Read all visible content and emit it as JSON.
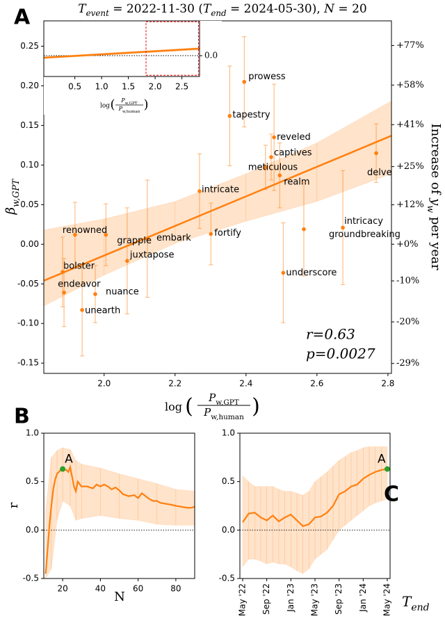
{
  "chart_data": [
    {
      "type": "scatter",
      "label": "A",
      "title_parts": [
        "T",
        "event",
        " = 2022-11-30 (",
        "T",
        "end",
        " = 2024-05-30), ",
        "N",
        " = 20"
      ],
      "x_label_parts": [
        "log",
        "(",
        "P",
        "w,GPT",
        "P",
        "w,human",
        ")"
      ],
      "y_label_parts": [
        "β",
        "w,GPT"
      ],
      "y2_label_parts": [
        "Increase of ",
        "y",
        "w",
        " per year"
      ],
      "color": "#ff7f0e",
      "points": {
        "labels": [
          "prowess",
          "tapestry",
          "reveled",
          "captives",
          "meticulous",
          "realm",
          "delve",
          "intricate",
          "intricacy",
          "groundbreaking",
          "fortify",
          "underscore",
          "embark",
          "grapple",
          "renowned",
          "juxtapose",
          "nuance",
          "unearth",
          "bolster",
          "endeavor"
        ],
        "x": [
          2.395,
          2.354,
          2.479,
          2.471,
          2.455,
          2.495,
          2.767,
          2.269,
          2.673,
          2.563,
          2.301,
          2.505,
          2.122,
          2.005,
          1.918,
          2.065,
          1.975,
          1.938,
          1.883,
          1.887
        ],
        "values": [
          0.205,
          0.162,
          0.135,
          0.11,
          0.097,
          0.087,
          0.115,
          0.067,
          0.021,
          0.019,
          0.013,
          -0.036,
          0.007,
          0.012,
          0.012,
          -0.021,
          -0.063,
          -0.083,
          -0.035,
          -0.061
        ],
        "errors": [
          0.057,
          0.063,
          0.067,
          0.029,
          0.028,
          0.041,
          0.037,
          0.047,
          0.072,
          0.059,
          0.039,
          0.063,
          0.074,
          0.039,
          0.041,
          0.067,
          0.036,
          0.058,
          0.044,
          0.043
        ]
      },
      "fit": {
        "x": [
          1.83,
          2.81
        ],
        "values": [
          -0.046,
          0.137
        ]
      },
      "band": {
        "x": [
          1.83,
          2.0,
          2.2,
          2.4,
          2.6,
          2.81
        ],
        "lower": [
          -0.078,
          -0.039,
          0.001,
          0.029,
          0.054,
          0.089
        ],
        "upper": [
          0.018,
          0.032,
          0.054,
          0.089,
          0.128,
          0.181
        ]
      },
      "annotations": [
        "r=0.63",
        "p=0.0027"
      ],
      "xlim": [
        1.83,
        2.81
      ],
      "xticks": [
        {
          "value": 2,
          "label": "2.0"
        },
        2.2,
        2.4,
        2.6,
        2.8
      ],
      "ylim": [
        -0.163,
        0.282
      ],
      "yticks": [
        -0.15,
        {
          "value": -0.1,
          "label": "-0.10"
        },
        -0.05,
        {
          "value": 0,
          "label": "0.00"
        },
        0.05,
        {
          "value": 0.1,
          "label": "0.10"
        },
        0.15,
        {
          "value": 0.2,
          "label": "0.20"
        },
        0.25
      ],
      "y2scale": "log",
      "y2lim": [
        -31,
        90
      ],
      "y2ticks": [
        {
          "value": -29,
          "label": "-29%"
        },
        {
          "value": -20,
          "label": "-20%"
        },
        {
          "value": -10,
          "label": "-10%"
        },
        {
          "value": 0,
          "label": "+0%"
        },
        {
          "value": 12,
          "label": "+12%"
        },
        {
          "value": 25,
          "label": "+25%"
        },
        {
          "value": 41,
          "label": "+41%"
        },
        {
          "value": 58,
          "label": "+58%"
        },
        {
          "value": 77,
          "label": "+77%"
        }
      ]
    },
    {
      "type": "line",
      "x_label_parts": [
        "log",
        "(",
        "P",
        "w,GPT",
        "P",
        "w,human",
        ")"
      ],
      "color": "#ff7f0e",
      "fit": {
        "x": [
          -0.08,
          2.83
        ],
        "values": [
          -0.017,
          0.058
        ]
      },
      "band": {
        "x": [
          -0.08,
          2.83
        ],
        "lower": [
          -0.025,
          0.048
        ],
        "upper": [
          -0.009,
          0.068
        ]
      },
      "zoom_box": {
        "x": [
          1.83,
          2.81
        ],
        "y": [
          -0.163,
          0.282
        ]
      },
      "xlim": [
        -0.08,
        2.83
      ],
      "xticks": [
        0.5,
        {
          "value": 1,
          "label": "1.0"
        },
        1.5,
        {
          "value": 2,
          "label": "2.0"
        },
        2.5
      ],
      "ylim": [
        -0.173,
        0.289
      ],
      "yticks": [
        {
          "value": 0,
          "label": "0.0"
        }
      ]
    },
    {
      "type": "line",
      "label": "B",
      "x_label": "N",
      "y_label": "r",
      "color": "#ff7f0e",
      "x": [
        11,
        12,
        13,
        14,
        15,
        16,
        17,
        18,
        19,
        20,
        22,
        23,
        24,
        25,
        26,
        27,
        28,
        30,
        33,
        36,
        38,
        40,
        42,
        44,
        46,
        48,
        50,
        52,
        55,
        58,
        60,
        62,
        64,
        66,
        68,
        70,
        72,
        75,
        78,
        80,
        83,
        86,
        88,
        90
      ],
      "values": [
        -0.45,
        -0.2,
        0.05,
        0.25,
        0.42,
        0.52,
        0.58,
        0.6,
        0.62,
        0.63,
        0.62,
        0.6,
        0.65,
        0.55,
        0.45,
        0.4,
        0.5,
        0.45,
        0.45,
        0.43,
        0.47,
        0.45,
        0.47,
        0.45,
        0.42,
        0.44,
        0.41,
        0.37,
        0.35,
        0.36,
        0.33,
        0.38,
        0.35,
        0.32,
        0.3,
        0.3,
        0.28,
        0.27,
        0.26,
        0.25,
        0.24,
        0.23,
        0.23,
        0.24
      ],
      "band": {
        "x": [
          11,
          14,
          17,
          20,
          24,
          27,
          30,
          40,
          50,
          60,
          70,
          80,
          90
        ],
        "lower": [
          -0.5,
          -0.4,
          0.1,
          0.3,
          0.25,
          0.1,
          0.12,
          0.15,
          0.12,
          0.1,
          0.06,
          0.05,
          0.05
        ],
        "upper": [
          0.2,
          0.75,
          0.82,
          0.85,
          0.83,
          0.72,
          0.68,
          0.64,
          0.58,
          0.53,
          0.48,
          0.42,
          0.4
        ]
      },
      "highlight": {
        "x": 20,
        "value": 0.63,
        "label": "A",
        "color": "#2ca02c"
      },
      "xlim": [
        10,
        90
      ],
      "xticks": [
        20,
        40,
        60,
        80
      ],
      "ylim": [
        -0.5,
        1
      ],
      "yticks": [
        -0.5,
        {
          "value": 0,
          "label": "0.0"
        },
        0.5,
        {
          "value": 1,
          "label": "1.0"
        }
      ]
    },
    {
      "type": "line",
      "label": "C",
      "x_label_parts": [
        "T",
        "end"
      ],
      "color": "#ff7f0e",
      "x": [
        "2022-05",
        "2022-06",
        "2022-07",
        "2022-08",
        "2022-09",
        "2022-10",
        "2022-11",
        "2022-12",
        "2023-01",
        "2023-02",
        "2023-03",
        "2023-04",
        "2023-05",
        "2023-06",
        "2023-07",
        "2023-08",
        "2023-09",
        "2023-10",
        "2023-11",
        "2023-12",
        "2024-01",
        "2024-02",
        "2024-03",
        "2024-04",
        "2024-05"
      ],
      "values": [
        0.08,
        0.17,
        0.18,
        0.13,
        0.1,
        0.15,
        0.09,
        0.13,
        0.16,
        0.1,
        0.04,
        0.06,
        0.13,
        0.14,
        0.18,
        0.25,
        0.37,
        0.4,
        0.45,
        0.47,
        0.53,
        0.57,
        0.6,
        0.62,
        0.63
      ],
      "band": {
        "x": [
          "2022-05",
          "2022-06",
          "2022-07",
          "2022-08",
          "2022-09",
          "2022-10",
          "2022-11",
          "2022-12",
          "2023-01",
          "2023-02",
          "2023-03",
          "2023-04",
          "2023-05",
          "2023-06",
          "2023-07",
          "2023-08",
          "2023-09",
          "2023-10",
          "2023-11",
          "2023-12",
          "2024-01",
          "2024-02",
          "2024-03",
          "2024-04",
          "2024-05"
        ],
        "lower": [
          -0.38,
          -0.3,
          -0.3,
          -0.32,
          -0.35,
          -0.33,
          -0.35,
          -0.35,
          -0.38,
          -0.42,
          -0.45,
          -0.4,
          -0.3,
          -0.25,
          -0.2,
          -0.1,
          0,
          0.05,
          0.1,
          0.15,
          0.2,
          0.25,
          0.28,
          0.3,
          0.32
        ],
        "upper": [
          0.56,
          0.5,
          0.45,
          0.45,
          0.45,
          0.45,
          0.42,
          0.4,
          0.4,
          0.38,
          0.36,
          0.4,
          0.5,
          0.55,
          0.6,
          0.66,
          0.72,
          0.76,
          0.8,
          0.82,
          0.85,
          0.86,
          0.86,
          0.86,
          0.86
        ]
      },
      "highlight": {
        "x": "2024-05",
        "value": 0.63,
        "label": "A",
        "color": "#2ca02c"
      },
      "xlim": [
        "2022-05",
        "2024-05"
      ],
      "xticks": [
        {
          "value": "2022-05",
          "label": "May '22"
        },
        {
          "value": "2022-09",
          "label": "Sep '22"
        },
        {
          "value": "2023-01",
          "label": "Jan '23"
        },
        {
          "value": "2023-05",
          "label": "May '23"
        },
        {
          "value": "2023-09",
          "label": "Sep '23"
        },
        {
          "value": "2024-01",
          "label": "Jan '24"
        },
        {
          "value": "2024-05",
          "label": "May '24"
        }
      ],
      "ylim": [
        -0.5,
        1
      ],
      "yticks": [
        -0.5,
        {
          "value": 0,
          "label": "0.0"
        },
        0.5,
        {
          "value": 1,
          "label": "1.0"
        }
      ]
    }
  ]
}
